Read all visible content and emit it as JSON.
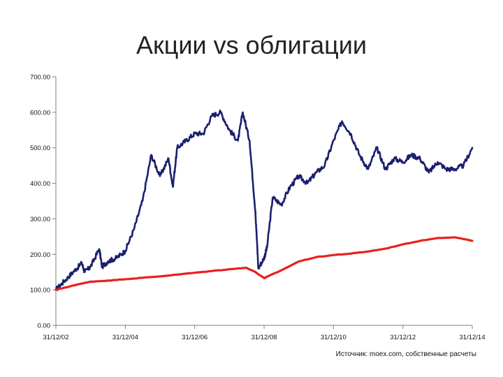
{
  "title": "Акции vs облигации",
  "source_note": "Источник: moex.com, собственные расчеты",
  "colors": {
    "stocks": "#1a1f6e",
    "bonds": "#e8201e",
    "axis": "#808080"
  },
  "chart_data": {
    "type": "line",
    "title": "Акции vs облигации",
    "xlabel": "",
    "ylabel": "",
    "xlim": [
      "2002-12-31",
      "2014-12-31"
    ],
    "ylim": [
      0,
      700
    ],
    "grid": false,
    "legend": "none",
    "y_ticks": [
      "0.00",
      "100.00",
      "200.00",
      "300.00",
      "400.00",
      "500.00",
      "600.00",
      "700.00"
    ],
    "x_ticks": [
      "31/12/02",
      "31/12/04",
      "31/12/06",
      "31/12/08",
      "31/12/10",
      "31/12/12",
      "31/12/14"
    ],
    "series": [
      {
        "color": "#1a1f6e",
        "x": [
          "2002-12-31",
          "2003-03-31",
          "2003-06-30",
          "2003-09-30",
          "2003-10-31",
          "2003-12-31",
          "2004-03-31",
          "2004-04-30",
          "2004-06-30",
          "2004-09-30",
          "2004-12-31",
          "2005-03-31",
          "2005-06-30",
          "2005-09-30",
          "2005-12-31",
          "2006-03-31",
          "2006-05-15",
          "2006-06-30",
          "2006-09-30",
          "2006-12-31",
          "2007-03-31",
          "2007-06-30",
          "2007-09-30",
          "2007-12-31",
          "2008-03-31",
          "2008-05-20",
          "2008-07-31",
          "2008-09-30",
          "2008-10-31",
          "2008-12-31",
          "2009-01-31",
          "2009-03-31",
          "2009-06-30",
          "2009-09-30",
          "2009-12-31",
          "2010-03-31",
          "2010-06-30",
          "2010-09-30",
          "2010-12-31",
          "2011-03-31",
          "2011-06-30",
          "2011-09-30",
          "2011-12-31",
          "2012-03-31",
          "2012-06-30",
          "2012-09-30",
          "2012-12-31",
          "2013-03-31",
          "2013-06-30",
          "2013-09-30",
          "2013-12-31",
          "2014-03-31",
          "2014-06-30",
          "2014-09-30",
          "2014-12-31"
        ],
        "y": [
          100,
          125,
          150,
          175,
          150,
          165,
          215,
          165,
          180,
          190,
          210,
          270,
          350,
          480,
          420,
          470,
          390,
          500,
          520,
          540,
          540,
          590,
          600,
          550,
          520,
          600,
          520,
          320,
          160,
          190,
          220,
          360,
          340,
          390,
          420,
          400,
          430,
          450,
          520,
          575,
          540,
          480,
          440,
          500,
          440,
          470,
          460,
          480,
          470,
          430,
          460,
          440,
          440,
          450,
          500
        ]
      },
      {
        "color": "#e8201e",
        "x": [
          "2002-12-31",
          "2003-06-30",
          "2003-12-31",
          "2004-06-30",
          "2004-12-31",
          "2005-06-30",
          "2005-12-31",
          "2006-06-30",
          "2006-12-31",
          "2007-06-30",
          "2007-12-31",
          "2008-06-30",
          "2008-09-30",
          "2008-12-31",
          "2009-06-30",
          "2009-12-31",
          "2010-06-30",
          "2010-12-31",
          "2011-06-30",
          "2011-12-31",
          "2012-06-30",
          "2012-12-31",
          "2013-06-30",
          "2013-12-31",
          "2014-06-30",
          "2014-12-31"
        ],
        "y": [
          100,
          112,
          123,
          126,
          130,
          134,
          138,
          143,
          148,
          153,
          158,
          162,
          150,
          133,
          155,
          180,
          192,
          198,
          202,
          208,
          216,
          228,
          238,
          246,
          248,
          238
        ]
      }
    ]
  }
}
